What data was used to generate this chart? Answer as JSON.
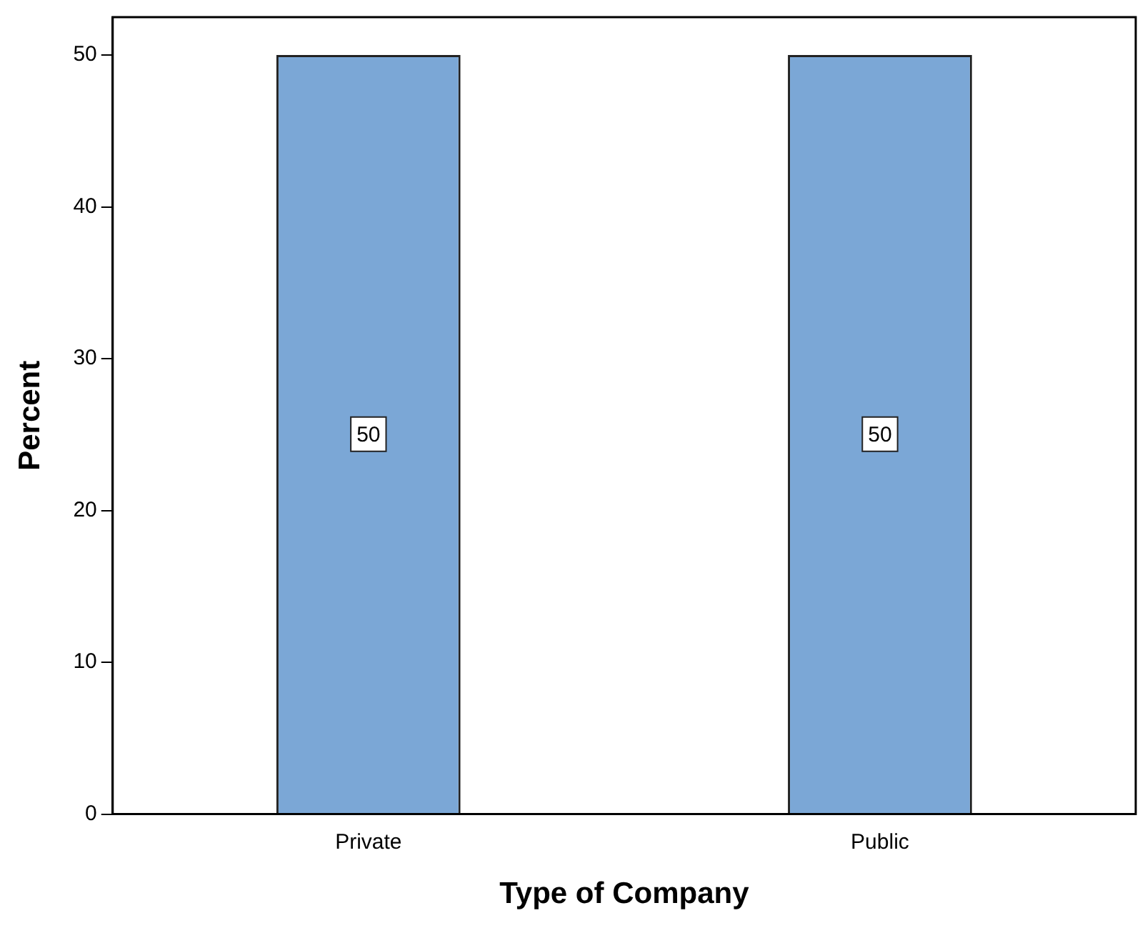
{
  "chart_data": {
    "type": "bar",
    "xlabel": "Type of Company",
    "ylabel": "Percent",
    "categories": [
      "Private",
      "Public"
    ],
    "values": [
      50,
      50
    ],
    "color": "#7ba7d6",
    "ylim": [
      0,
      52.5
    ],
    "yticks": [
      0,
      10,
      20,
      30,
      40,
      50
    ],
    "grid": false,
    "data_labels": true
  }
}
